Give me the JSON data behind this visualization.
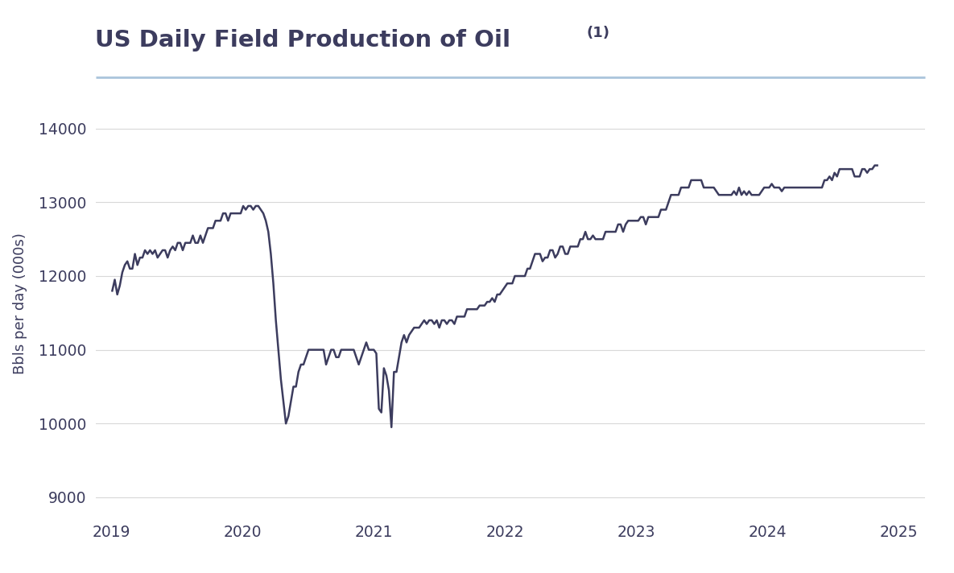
{
  "title_main": "US Daily Field Production of Oil",
  "title_super": "(1)",
  "ylabel": "Bbls per day (000s)",
  "background_color": "#ffffff",
  "line_color": "#3c3c5e",
  "grid_color": "#d8d8d8",
  "title_color": "#3c3c5e",
  "axis_color": "#3c3c5e",
  "separator_color": "#aac4dc",
  "xlim": [
    2018.88,
    2025.2
  ],
  "ylim": [
    8750,
    14500
  ],
  "yticks": [
    9000,
    10000,
    11000,
    12000,
    13000,
    14000
  ],
  "xticks": [
    2019,
    2020,
    2021,
    2022,
    2023,
    2024,
    2025
  ],
  "values": [
    11800,
    11950,
    11750,
    11870,
    12050,
    12150,
    12200,
    12100,
    12100,
    12300,
    12150,
    12250,
    12250,
    12350,
    12300,
    12350,
    12300,
    12350,
    12250,
    12300,
    12350,
    12350,
    12250,
    12350,
    12400,
    12350,
    12450,
    12450,
    12350,
    12450,
    12450,
    12450,
    12550,
    12450,
    12450,
    12550,
    12450,
    12550,
    12650,
    12650,
    12650,
    12750,
    12750,
    12750,
    12850,
    12850,
    12750,
    12850,
    12850,
    12850,
    12850,
    12850,
    12950,
    12900,
    12950,
    12950,
    12900,
    12950,
    12950,
    12900,
    12850,
    12750,
    12600,
    12300,
    11900,
    11400,
    11000,
    10600,
    10300,
    10000,
    10100,
    10300,
    10500,
    10500,
    10700,
    10800,
    10800,
    10900,
    11000,
    11000,
    11000,
    11000,
    11000,
    11000,
    11000,
    10800,
    10900,
    11000,
    11000,
    10900,
    10900,
    11000,
    11000,
    11000,
    11000,
    11000,
    11000,
    10900,
    10800,
    10900,
    11000,
    11100,
    11000,
    11000,
    11000,
    10950,
    10200,
    10150,
    10750,
    10650,
    10450,
    9950,
    10700,
    10700,
    10900,
    11100,
    11200,
    11100,
    11200,
    11250,
    11300,
    11300,
    11300,
    11350,
    11400,
    11350,
    11400,
    11400,
    11350,
    11400,
    11300,
    11400,
    11400,
    11350,
    11400,
    11400,
    11350,
    11450,
    11450,
    11450,
    11450,
    11550,
    11550,
    11550,
    11550,
    11550,
    11600,
    11600,
    11600,
    11650,
    11650,
    11700,
    11650,
    11750,
    11750,
    11800,
    11850,
    11900,
    11900,
    11900,
    12000,
    12000,
    12000,
    12000,
    12000,
    12100,
    12100,
    12200,
    12300,
    12300,
    12300,
    12200,
    12250,
    12250,
    12350,
    12350,
    12250,
    12300,
    12400,
    12400,
    12300,
    12300,
    12400,
    12400,
    12400,
    12400,
    12500,
    12500,
    12600,
    12500,
    12500,
    12550,
    12500,
    12500,
    12500,
    12500,
    12600,
    12600,
    12600,
    12600,
    12600,
    12700,
    12700,
    12600,
    12700,
    12750,
    12750,
    12750,
    12750,
    12750,
    12800,
    12800,
    12700,
    12800,
    12800,
    12800,
    12800,
    12800,
    12900,
    12900,
    12900,
    13000,
    13100,
    13100,
    13100,
    13100,
    13200,
    13200,
    13200,
    13200,
    13300,
    13300,
    13300,
    13300,
    13300,
    13200,
    13200,
    13200,
    13200,
    13200,
    13150,
    13100,
    13100,
    13100,
    13100,
    13100,
    13100,
    13150,
    13100,
    13200,
    13100,
    13150,
    13100,
    13150,
    13100,
    13100,
    13100,
    13100,
    13150,
    13200,
    13200,
    13200,
    13250,
    13200,
    13200,
    13200,
    13150,
    13200,
    13200,
    13200,
    13200,
    13200,
    13200,
    13200,
    13200,
    13200,
    13200,
    13200,
    13200,
    13200,
    13200,
    13200,
    13200,
    13300,
    13300,
    13350,
    13300,
    13400,
    13350,
    13450,
    13450,
    13450,
    13450,
    13450,
    13450,
    13350,
    13350,
    13350,
    13450,
    13450,
    13400,
    13450,
    13450,
    13500,
    13500
  ]
}
